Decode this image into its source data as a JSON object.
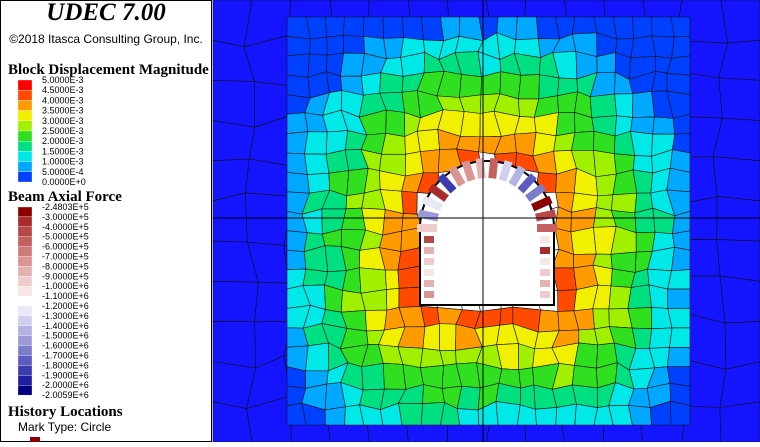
{
  "header": {
    "title": "UDEC 7.00",
    "copyright": "©2018 Itasca Consulting Group, Inc."
  },
  "displacement_legend": {
    "title": "Block Displacement Magnitude",
    "labels": [
      "5.0000E-3",
      "4.5000E-3",
      "4.0000E-3",
      "3.5000E-3",
      "3.0000E-3",
      "2.5000E-3",
      "2.0000E-3",
      "1.5000E-3",
      "1.0000E-3",
      "5.0000E-4",
      "0.0000E+0"
    ],
    "colors": [
      "#ff0000",
      "#ff4a00",
      "#ff9a00",
      "#f0f000",
      "#a0f000",
      "#30e020",
      "#00e080",
      "#00e8e8",
      "#00a8ff",
      "#0040ff"
    ]
  },
  "beam_legend": {
    "title": "Beam Axial Force",
    "labels": [
      "-2.4803E+5",
      "-3.0000E+5",
      "-4.0000E+5",
      "-5.0000E+5",
      "-6.0000E+5",
      "-7.0000E+5",
      "-8.0000E+5",
      "-9.0000E+5",
      "-1.0000E+6",
      "-1.1000E+6",
      "-1.2000E+6",
      "-1.3000E+6",
      "-1.4000E+6",
      "-1.5000E+6",
      "-1.6000E+6",
      "-1.7000E+6",
      "-1.8000E+6",
      "-1.9000E+6",
      "-2.0000E+6",
      "-2.0059E+6"
    ],
    "colors": [
      "#8b0000",
      "#a82a2a",
      "#b84848",
      "#c66060",
      "#d07a7a",
      "#da9494",
      "#e4b0b0",
      "#eecccc",
      "#f6e6e6",
      "#ffffff",
      "#e8e8f6",
      "#d0d0ee",
      "#b4b4e2",
      "#9a9ad8",
      "#7c7ccc",
      "#5c5cc0",
      "#3c3cb0",
      "#1e1ea0",
      "#000080"
    ]
  },
  "history": {
    "title": "History Locations",
    "mark_type": "Mark Type: Circle"
  }
}
